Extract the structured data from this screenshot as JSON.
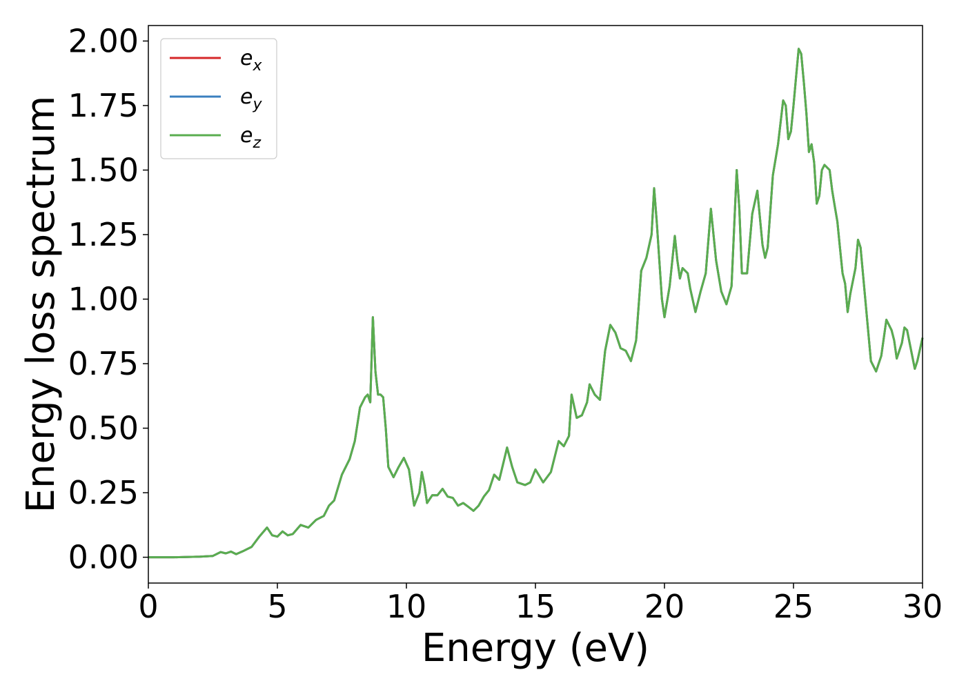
{
  "chart_data": {
    "type": "line",
    "title": "",
    "xlabel": "Energy (eV)",
    "ylabel": "Energy loss spectrum",
    "xlim": [
      0,
      30
    ],
    "ylim": [
      -0.1,
      2.06
    ],
    "xticks": [
      "0",
      "5",
      "10",
      "15",
      "20",
      "25",
      "30"
    ],
    "yticks": [
      "0.00",
      "0.25",
      "0.50",
      "0.75",
      "1.00",
      "1.25",
      "1.50",
      "1.75",
      "2.00"
    ],
    "grid": false,
    "legend_position": "upper-left",
    "colors": {
      "e_x": "#d62728",
      "e_y": "#3a7fbf",
      "e_z": "#5aad4f"
    },
    "series": [
      {
        "name": "e_x",
        "base": "e",
        "sub": "x",
        "color": "#d62728"
      },
      {
        "name": "e_y",
        "base": "e",
        "sub": "y",
        "color": "#3a7fbf"
      },
      {
        "name": "e_z",
        "base": "e",
        "sub": "z",
        "color": "#5aad4f"
      }
    ],
    "x": [
      0,
      1,
      2,
      2.5,
      2.8,
      3.0,
      3.2,
      3.4,
      3.7,
      4.0,
      4.3,
      4.6,
      4.8,
      5.0,
      5.2,
      5.4,
      5.6,
      5.9,
      6.2,
      6.5,
      6.8,
      7.0,
      7.2,
      7.5,
      7.8,
      8.0,
      8.2,
      8.4,
      8.5,
      8.6,
      8.7,
      8.8,
      8.9,
      9.0,
      9.1,
      9.2,
      9.3,
      9.5,
      9.7,
      9.9,
      10.1,
      10.3,
      10.5,
      10.6,
      10.7,
      10.8,
      11.0,
      11.2,
      11.4,
      11.5,
      11.6,
      11.8,
      12.0,
      12.2,
      12.4,
      12.6,
      12.8,
      13.0,
      13.2,
      13.4,
      13.6,
      13.9,
      14.1,
      14.3,
      14.6,
      14.8,
      15.0,
      15.3,
      15.6,
      15.9,
      16.1,
      16.3,
      16.4,
      16.6,
      16.8,
      17.0,
      17.1,
      17.3,
      17.5,
      17.7,
      17.9,
      18.1,
      18.3,
      18.5,
      18.7,
      18.9,
      19.1,
      19.3,
      19.5,
      19.6,
      19.7,
      19.9,
      20.0,
      20.2,
      20.4,
      20.5,
      20.6,
      20.7,
      20.9,
      21.0,
      21.2,
      21.4,
      21.6,
      21.8,
      22.0,
      22.2,
      22.4,
      22.6,
      22.8,
      22.9,
      23.0,
      23.2,
      23.4,
      23.6,
      23.8,
      23.9,
      24.0,
      24.2,
      24.4,
      24.6,
      24.7,
      24.8,
      24.9,
      25.0,
      25.1,
      25.2,
      25.3,
      25.4,
      25.5,
      25.6,
      25.7,
      25.8,
      25.9,
      26.0,
      26.1,
      26.2,
      26.4,
      26.5,
      26.6,
      26.7,
      26.8,
      26.9,
      27.0,
      27.1,
      27.2,
      27.4,
      27.5,
      27.6,
      27.8,
      28.0,
      28.2,
      28.4,
      28.6,
      28.8,
      28.9,
      29.0,
      29.2,
      29.3,
      29.4,
      29.5,
      29.7,
      29.8,
      30.0
    ],
    "y": [
      0.0,
      0.0,
      0.002,
      0.005,
      0.02,
      0.015,
      0.022,
      0.012,
      0.025,
      0.04,
      0.08,
      0.115,
      0.085,
      0.08,
      0.1,
      0.085,
      0.09,
      0.125,
      0.115,
      0.145,
      0.16,
      0.2,
      0.22,
      0.32,
      0.38,
      0.45,
      0.58,
      0.62,
      0.63,
      0.6,
      0.93,
      0.72,
      0.63,
      0.63,
      0.62,
      0.5,
      0.35,
      0.31,
      0.35,
      0.385,
      0.34,
      0.2,
      0.25,
      0.33,
      0.28,
      0.21,
      0.24,
      0.24,
      0.265,
      0.25,
      0.235,
      0.23,
      0.2,
      0.21,
      0.195,
      0.18,
      0.2,
      0.235,
      0.26,
      0.32,
      0.3,
      0.425,
      0.35,
      0.29,
      0.28,
      0.29,
      0.34,
      0.29,
      0.33,
      0.45,
      0.43,
      0.47,
      0.63,
      0.54,
      0.55,
      0.6,
      0.67,
      0.63,
      0.61,
      0.8,
      0.9,
      0.87,
      0.81,
      0.8,
      0.76,
      0.84,
      1.11,
      1.16,
      1.25,
      1.43,
      1.3,
      1.0,
      0.93,
      1.05,
      1.245,
      1.15,
      1.08,
      1.12,
      1.1,
      1.04,
      0.95,
      1.03,
      1.1,
      1.35,
      1.15,
      1.03,
      0.98,
      1.05,
      1.5,
      1.35,
      1.1,
      1.1,
      1.33,
      1.42,
      1.21,
      1.16,
      1.2,
      1.48,
      1.6,
      1.77,
      1.75,
      1.62,
      1.65,
      1.75,
      1.86,
      1.97,
      1.95,
      1.84,
      1.72,
      1.57,
      1.6,
      1.53,
      1.37,
      1.4,
      1.5,
      1.52,
      1.5,
      1.42,
      1.36,
      1.3,
      1.2,
      1.1,
      1.06,
      0.95,
      1.02,
      1.12,
      1.23,
      1.2,
      0.98,
      0.76,
      0.72,
      0.78,
      0.92,
      0.88,
      0.84,
      0.77,
      0.83,
      0.89,
      0.88,
      0.83,
      0.73,
      0.76,
      0.85
    ]
  }
}
